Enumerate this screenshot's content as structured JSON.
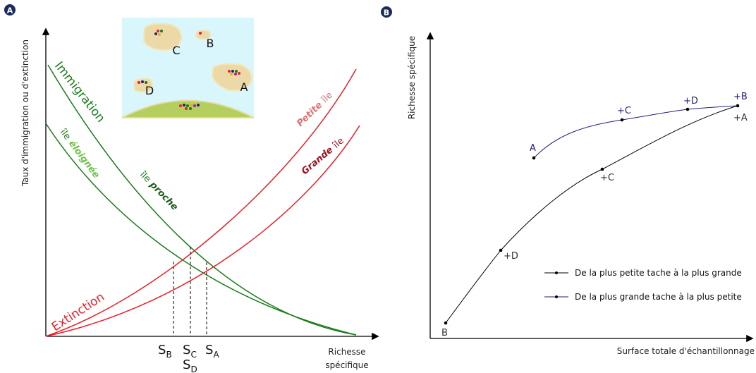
{
  "panelA": {
    "badge": "A",
    "y_axis_label": "Taux d'immigration ou d'extinction",
    "x_axis_label_line1": "Richesse",
    "x_axis_label_line2": "spécifique",
    "immigration_label": "Immigration",
    "extinction_label": "Extinction",
    "ile_eloignee_prefix": "île",
    "ile_eloignee_word": "éloignée",
    "ile_proche_prefix": "île",
    "ile_proche_word": "proche",
    "petite_ile_word": "Petite",
    "petite_ile_suffix": "île",
    "grande_ile_word": "Grande",
    "grande_ile_suffix": "île",
    "sB": "S",
    "sB_sub": "B",
    "sC": "S",
    "sC_sub": "C",
    "sA": "S",
    "sA_sub": "A",
    "sD": "S",
    "sD_sub": "D",
    "islands": {
      "A": "A",
      "B": "B",
      "C": "C",
      "D": "D"
    }
  },
  "panelB": {
    "badge": "B",
    "y_axis_label": "Richesse spécifique",
    "x_axis_label": "Surface totale d'échantillonnage",
    "legend": [
      {
        "label": "De la plus petite tache à la plus grande",
        "color": "#000000"
      },
      {
        "label": "De la plus grande tache à la plus petite",
        "color": "#1f1f7a"
      }
    ],
    "black_points": {
      "B": "B",
      "D": "+D",
      "C": "+C",
      "A": "+A"
    },
    "blue_points": {
      "A": "A",
      "C": "+C",
      "D": "+D",
      "B": "+B"
    }
  },
  "colors": {
    "green": "#1a7a1a",
    "light_green": "#6cc24a",
    "red": "#e8202a",
    "dark_red": "#a01020",
    "pink_red": "#e07070",
    "navy": "#1f1f7a",
    "sea": "#d8f6fb",
    "sand": "#ecd9a8",
    "mainland": "#b5cf5f"
  }
}
